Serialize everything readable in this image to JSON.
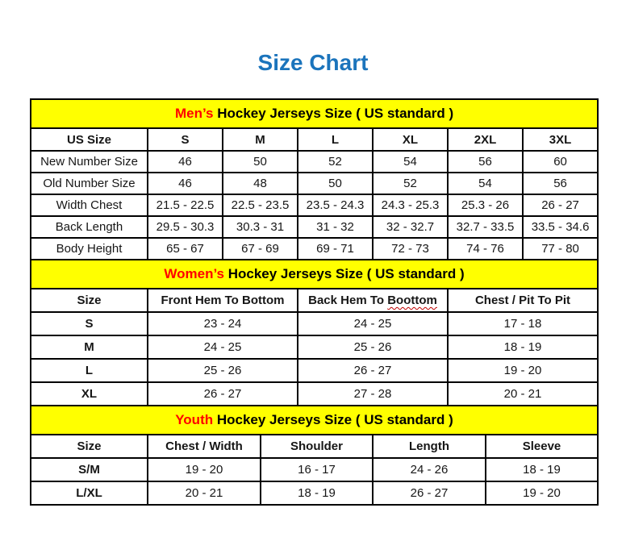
{
  "page": {
    "title": "Size Chart"
  },
  "colors": {
    "title_blue": "#1b74bc",
    "band_yellow": "#ffff00",
    "highlight_red": "#ff0000",
    "border_black": "#000000",
    "squiggle_red": "#c00000"
  },
  "sections": [
    {
      "id": "mens",
      "band": {
        "highlight": "Men’s",
        "rest": " Hockey Jerseys Size ( US standard )"
      },
      "columns": [
        "US Size",
        "S",
        "M",
        "L",
        "XL",
        "2XL",
        "3XL"
      ],
      "bold_first_column": false,
      "rows": [
        [
          "New Number Size",
          "46",
          "50",
          "52",
          "54",
          "56",
          "60"
        ],
        [
          "Old Number Size",
          "46",
          "48",
          "50",
          "52",
          "54",
          "56"
        ],
        [
          "Width Chest",
          "21.5 - 22.5",
          "22.5 - 23.5",
          "23.5 - 24.3",
          "24.3 - 25.3",
          "25.3 - 26",
          "26 - 27"
        ],
        [
          "Back Length",
          "29.5 - 30.3",
          "30.3 - 31",
          "31 - 32",
          "32 - 32.7",
          "32.7 - 33.5",
          "33.5 - 34.6"
        ],
        [
          "Body Height",
          "65 - 67",
          "67 - 69",
          "69 - 71",
          "72 - 73",
          "74 - 76",
          "77 - 80"
        ]
      ]
    },
    {
      "id": "womens",
      "band": {
        "highlight": "Women’s",
        "rest": " Hockey Jerseys Size ( US standard )"
      },
      "columns": [
        "Size",
        "Front Hem To Bottom",
        {
          "pre": "Back Hem To ",
          "wavy": "Boottom"
        },
        "Chest / Pit To Pit"
      ],
      "bold_first_column": true,
      "rows": [
        [
          "S",
          "23 - 24",
          "24 - 25",
          "17 - 18"
        ],
        [
          "M",
          "24 - 25",
          "25 - 26",
          "18 - 19"
        ],
        [
          "L",
          "25 - 26",
          "26 - 27",
          "19 - 20"
        ],
        [
          "XL",
          "26 - 27",
          "27 - 28",
          "20 - 21"
        ]
      ]
    },
    {
      "id": "youth",
      "band": {
        "highlight": "Youth",
        "rest": " Hockey Jerseys Size ( US standard )"
      },
      "columns": [
        "Size",
        "Chest / Width",
        "Shoulder",
        "Length",
        "Sleeve"
      ],
      "bold_first_column": true,
      "rows": [
        [
          "S/M",
          "19 - 20",
          "16 - 17",
          "24 - 26",
          "18 - 19"
        ],
        [
          "L/XL",
          "20 - 21",
          "18 - 19",
          "26 - 27",
          "19 - 20"
        ]
      ]
    }
  ]
}
